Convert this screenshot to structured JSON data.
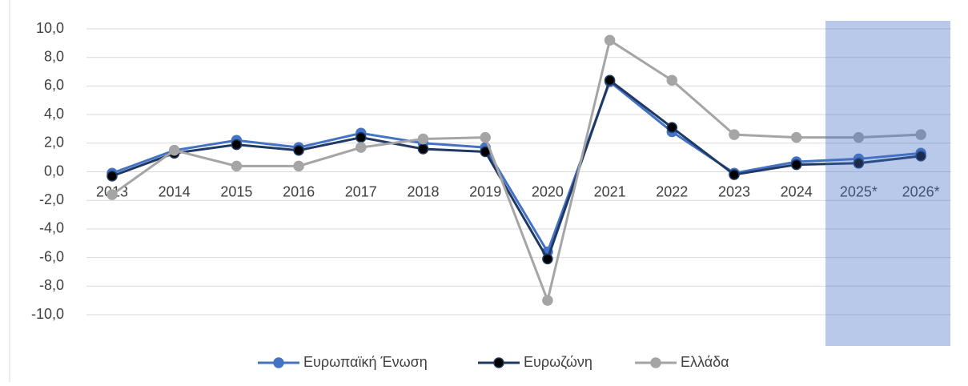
{
  "chart_data": {
    "type": "line",
    "categories": [
      "2013",
      "2014",
      "2015",
      "2016",
      "2017",
      "2018",
      "2019",
      "2020",
      "2021",
      "2022",
      "2023",
      "2024",
      "2025*",
      "2026*"
    ],
    "series": [
      {
        "name": "Ευρωπαϊκή Ένωση",
        "color": "#4472c4",
        "marker_color": "#4472c4",
        "values": [
          -0.1,
          1.5,
          2.2,
          1.7,
          2.7,
          2.0,
          1.7,
          -5.6,
          6.3,
          2.8,
          -0.1,
          0.7,
          0.9,
          1.3
        ]
      },
      {
        "name": "Ευρωζώνη",
        "color": "#203864",
        "marker_color": "#000000",
        "values": [
          -0.3,
          1.3,
          1.9,
          1.5,
          2.4,
          1.6,
          1.4,
          -6.1,
          6.4,
          3.1,
          -0.2,
          0.5,
          0.6,
          1.1
        ]
      },
      {
        "name": "Ελλάδα",
        "color": "#a5a5a5",
        "marker_color": "#a5a5a5",
        "values": [
          -1.6,
          1.5,
          0.4,
          0.4,
          1.7,
          2.3,
          2.4,
          -9.0,
          9.2,
          6.4,
          2.6,
          2.4,
          2.4,
          2.6
        ]
      }
    ],
    "ylim": [
      -10,
      10
    ],
    "yticks": [
      {
        "value": 10,
        "label": "10,0"
      },
      {
        "value": 8,
        "label": "8,0"
      },
      {
        "value": 6,
        "label": "6,0"
      },
      {
        "value": 4,
        "label": "4,0"
      },
      {
        "value": 2,
        "label": "2,0"
      },
      {
        "value": 0,
        "label": "0,0"
      },
      {
        "value": -2,
        "label": "-2,0"
      },
      {
        "value": -4,
        "label": "-4,0"
      },
      {
        "value": -6,
        "label": "-6,0"
      },
      {
        "value": -8,
        "label": "-8,0"
      },
      {
        "value": -10,
        "label": "-10,0"
      }
    ],
    "grid": true,
    "legend": "bottom"
  }
}
